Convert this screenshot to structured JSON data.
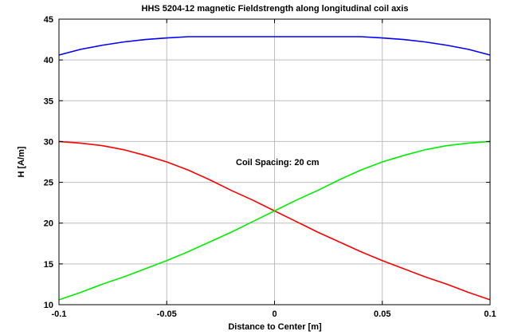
{
  "chart_data": {
    "type": "line",
    "title": "HHS 5204-12 magnetic Fieldstrength along longitudinal coil axis",
    "xlabel": "Distance to Center [m]",
    "ylabel": "H [A/m]",
    "xlim": [
      -0.1,
      0.1
    ],
    "ylim": [
      10,
      45
    ],
    "xticks": [
      -0.1,
      -0.05,
      0,
      0.05,
      0.1
    ],
    "xtick_labels": [
      "-0.1",
      "-0.05",
      "0",
      "0.05",
      "0.1"
    ],
    "yticks": [
      10,
      15,
      20,
      25,
      30,
      35,
      40,
      45
    ],
    "ytick_labels": [
      "10",
      "15",
      "20",
      "25",
      "30",
      "35",
      "40",
      "45"
    ],
    "grid": true,
    "annotation": "Coil Spacing: 20 cm",
    "x": [
      -0.1,
      -0.09,
      -0.08,
      -0.07,
      -0.06,
      -0.05,
      -0.04,
      -0.03,
      -0.02,
      -0.01,
      0,
      0.01,
      0.02,
      0.03,
      0.04,
      0.05,
      0.06,
      0.07,
      0.08,
      0.09,
      0.1
    ],
    "series": [
      {
        "color": "#0000ff",
        "values": [
          40.6,
          41.3,
          41.8,
          42.2,
          42.5,
          42.7,
          42.85,
          42.85,
          42.85,
          42.85,
          42.85,
          42.85,
          42.85,
          42.85,
          42.85,
          42.7,
          42.5,
          42.2,
          41.8,
          41.3,
          40.6
        ]
      },
      {
        "color": "#ff0000",
        "values": [
          30.0,
          29.8,
          29.5,
          29.0,
          28.3,
          27.5,
          26.5,
          25.3,
          24.0,
          22.8,
          21.5,
          20.2,
          18.9,
          17.7,
          16.5,
          15.4,
          14.4,
          13.4,
          12.5,
          11.5,
          10.6
        ]
      },
      {
        "color": "#00ee00",
        "values": [
          10.6,
          11.5,
          12.5,
          13.4,
          14.4,
          15.4,
          16.5,
          17.7,
          18.9,
          20.2,
          21.5,
          22.8,
          24.0,
          25.3,
          26.5,
          27.5,
          28.3,
          29.0,
          29.5,
          29.8,
          30.0
        ]
      }
    ]
  }
}
